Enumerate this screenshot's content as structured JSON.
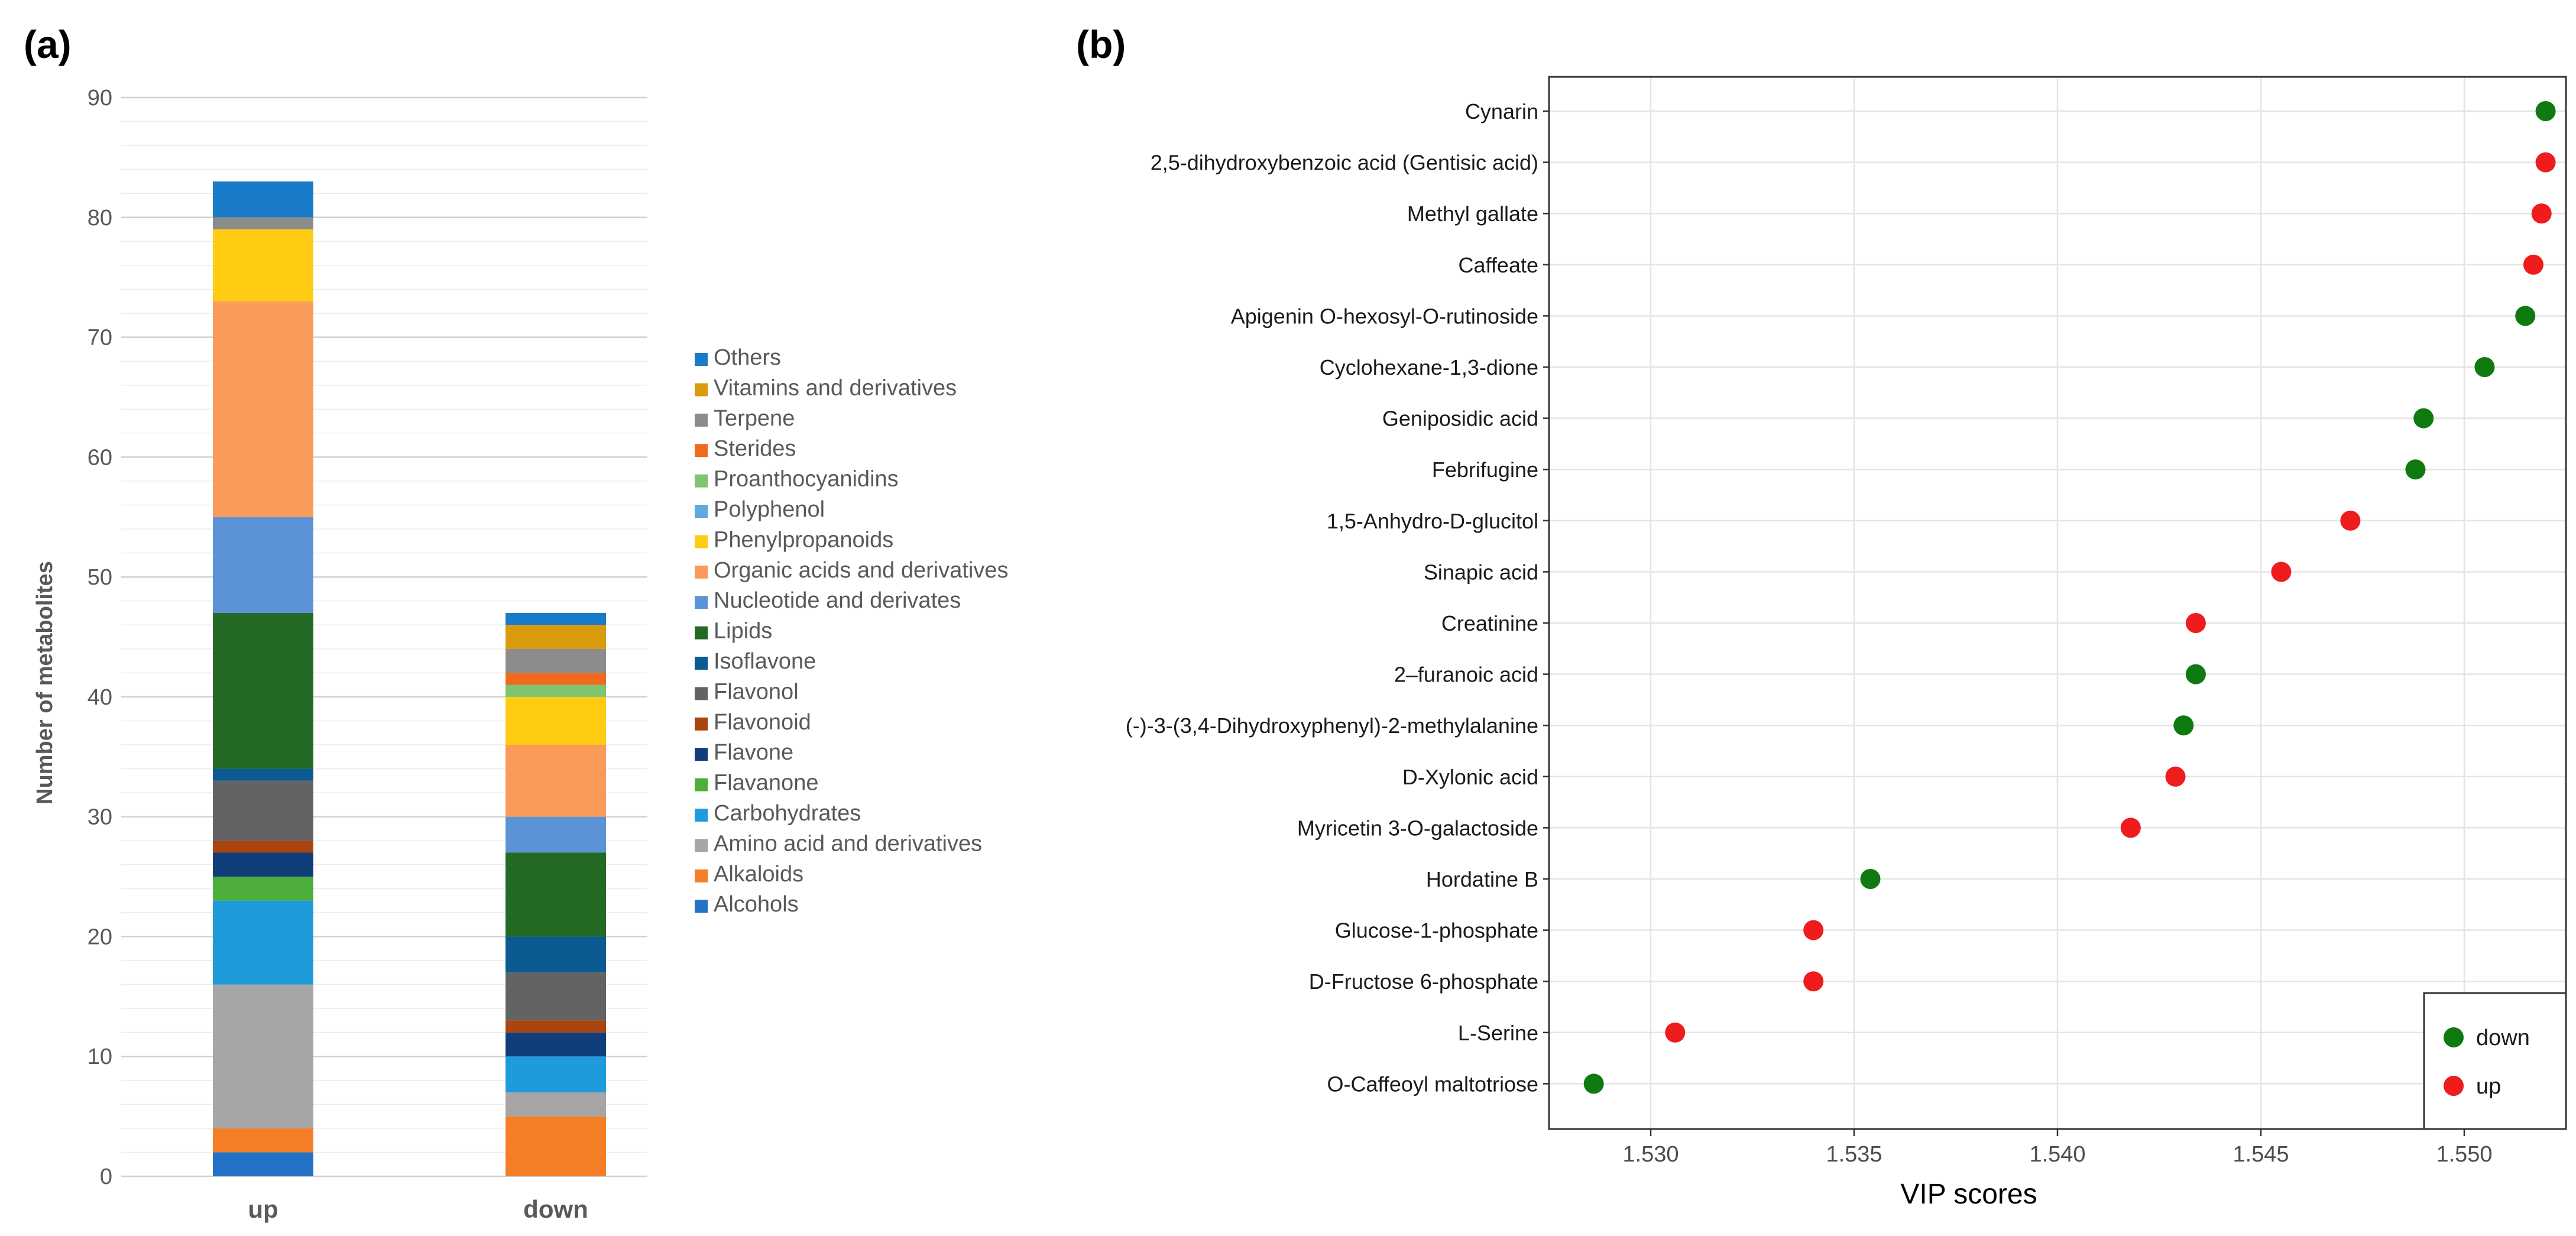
{
  "panels": {
    "a_label": "(a)",
    "b_label": "(b)"
  },
  "chart_data": [
    {
      "type": "bar",
      "stacked": true,
      "title": "",
      "xlabel": "",
      "ylabel": "Number of metabolites",
      "ylim": [
        0,
        90
      ],
      "ytick_step": 10,
      "minor_grid_step": 2,
      "legend_position": "right",
      "categories": [
        "up",
        "down"
      ],
      "series": [
        {
          "name": "Alcohols",
          "color": "#2472C8",
          "values": [
            2,
            0
          ]
        },
        {
          "name": "Alkaloids",
          "color": "#F57F26",
          "values": [
            2,
            5
          ]
        },
        {
          "name": "Amino acid and derivatives",
          "color": "#A6A6A6",
          "values": [
            12,
            2
          ]
        },
        {
          "name": "Carbohydrates",
          "color": "#1F9BDB",
          "values": [
            7,
            3
          ]
        },
        {
          "name": "Flavanone",
          "color": "#4EAE3C",
          "values": [
            2,
            0
          ]
        },
        {
          "name": "Flavone",
          "color": "#103E7A",
          "values": [
            2,
            2
          ]
        },
        {
          "name": "Flavonoid",
          "color": "#A9450F",
          "values": [
            1,
            1
          ]
        },
        {
          "name": "Flavonol",
          "color": "#636363",
          "values": [
            5,
            4
          ]
        },
        {
          "name": "Isoflavone",
          "color": "#0B5A92",
          "values": [
            1,
            3
          ]
        },
        {
          "name": "Lipids",
          "color": "#256A24",
          "values": [
            13,
            7
          ]
        },
        {
          "name": "Nucleotide and derivates",
          "color": "#5B93D6",
          "values": [
            8,
            3
          ]
        },
        {
          "name": "Organic acids and derivatives",
          "color": "#FB9B5A",
          "values": [
            18,
            6
          ]
        },
        {
          "name": "Phenylpropanoids",
          "color": "#FFCC14",
          "values": [
            6,
            4
          ]
        },
        {
          "name": "Polyphenol",
          "color": "#5EA9DD",
          "values": [
            0,
            0
          ]
        },
        {
          "name": "Proanthocyanidins",
          "color": "#7FC470",
          "values": [
            0,
            1
          ]
        },
        {
          "name": "Sterides",
          "color": "#F06A1E",
          "values": [
            0,
            1
          ]
        },
        {
          "name": "Terpene",
          "color": "#8C8C8C",
          "values": [
            1,
            2
          ]
        },
        {
          "name": "Vitamins and derivatives",
          "color": "#D99A0B",
          "values": [
            0,
            2
          ]
        },
        {
          "name": "Others",
          "color": "#1A7CC8",
          "values": [
            3,
            1
          ]
        }
      ]
    },
    {
      "type": "scatter",
      "title": "",
      "xlabel": "VIP scores",
      "ylabel": "",
      "xlim": [
        1.5275,
        1.5525
      ],
      "xticks": [
        1.53,
        1.535,
        1.54,
        1.545,
        1.55
      ],
      "xtick_labels": [
        "1.530",
        "1.535",
        "1.540",
        "1.545",
        "1.550"
      ],
      "legend_position": "bottom-right",
      "groups": [
        {
          "name": "down",
          "color": "#0E7A10"
        },
        {
          "name": "up",
          "color": "#EE1C1C"
        }
      ],
      "points": [
        {
          "label": "Cynarin",
          "vip": 1.552,
          "group": "down"
        },
        {
          "label": "2,5-dihydroxybenzoic acid (Gentisic acid)",
          "vip": 1.552,
          "group": "up"
        },
        {
          "label": "Methyl gallate",
          "vip": 1.5519,
          "group": "up"
        },
        {
          "label": "Caffeate",
          "vip": 1.5517,
          "group": "up"
        },
        {
          "label": "Apigenin O-hexosyl-O-rutinoside",
          "vip": 1.5515,
          "group": "down"
        },
        {
          "label": "Cyclohexane-1,3-dione",
          "vip": 1.5505,
          "group": "down"
        },
        {
          "label": "Geniposidic  acid",
          "vip": 1.549,
          "group": "down"
        },
        {
          "label": "Febrifugine",
          "vip": 1.5488,
          "group": "down"
        },
        {
          "label": "1,5-Anhydro-D-glucitol",
          "vip": 1.5472,
          "group": "up"
        },
        {
          "label": "Sinapic acid",
          "vip": 1.5455,
          "group": "up"
        },
        {
          "label": "Creatinine",
          "vip": 1.5434,
          "group": "up"
        },
        {
          "label": "2–furanoic acid",
          "vip": 1.5434,
          "group": "down"
        },
        {
          "label": "(-)-3-(3,4-Dihydroxyphenyl)-2-methylalanine",
          "vip": 1.5431,
          "group": "down"
        },
        {
          "label": "D-Xylonic acid",
          "vip": 1.5429,
          "group": "up"
        },
        {
          "label": "Myricetin 3-O-galactoside",
          "vip": 1.5418,
          "group": "up"
        },
        {
          "label": "Hordatine B",
          "vip": 1.5354,
          "group": "down"
        },
        {
          "label": "Glucose-1-phosphate",
          "vip": 1.534,
          "group": "up"
        },
        {
          "label": "D-Fructose 6-phosphate",
          "vip": 1.534,
          "group": "up"
        },
        {
          "label": "L-Serine",
          "vip": 1.5306,
          "group": "up"
        },
        {
          "label": "O-Caffeoyl maltotriose",
          "vip": 1.5286,
          "group": "down"
        }
      ]
    }
  ]
}
